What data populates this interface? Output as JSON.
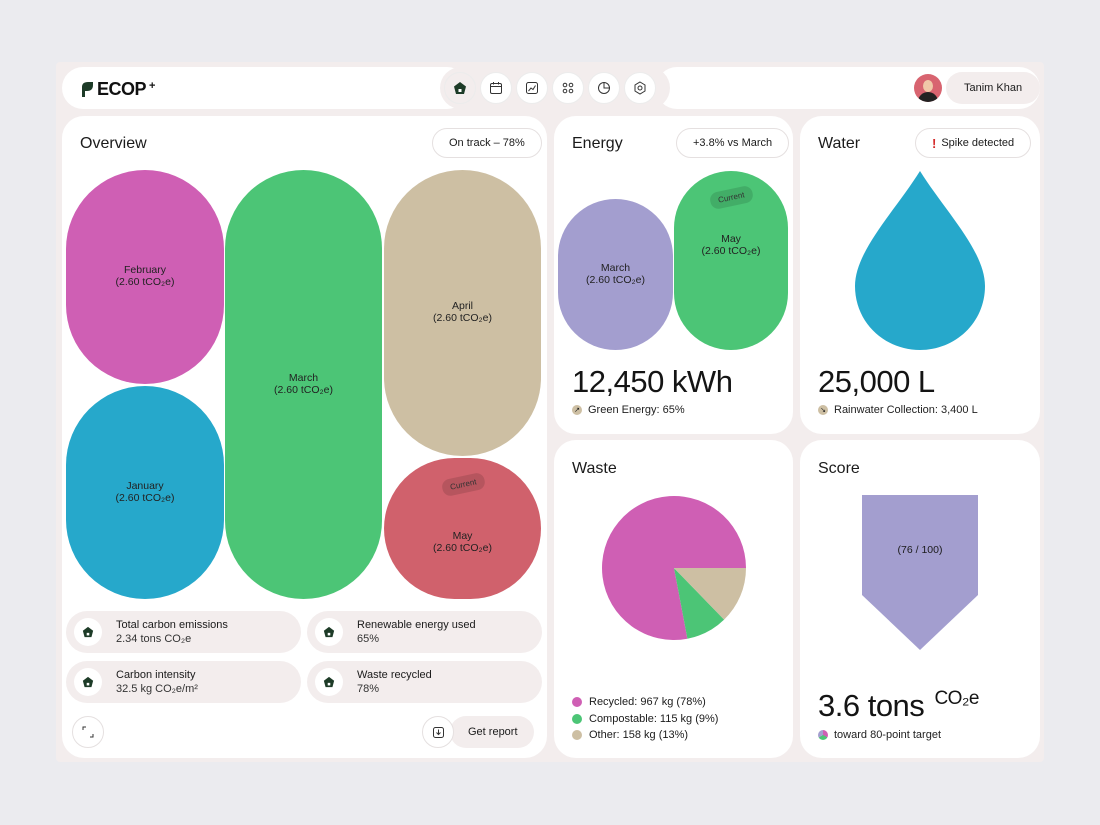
{
  "app": {
    "logo_text": "ECOP",
    "logo_sup": "+"
  },
  "nav": {
    "items": [
      "home-icon",
      "calendar-icon",
      "trend-icon",
      "grid-icon",
      "pie-icon",
      "settings-icon"
    ]
  },
  "user": {
    "name": "Tanim Khan"
  },
  "overview": {
    "title": "Overview",
    "badge": "On track – 78%",
    "months": [
      {
        "name": "February",
        "value": "(2.60 tCO₂e)",
        "color": "#cf5fb4"
      },
      {
        "name": "January",
        "value": "(2.60 tCO₂e)",
        "color": "#26a8cb"
      },
      {
        "name": "March",
        "value": "(2.60 tCO₂e)",
        "color": "#4cc576"
      },
      {
        "name": "April",
        "value": "(2.60 tCO₂e)",
        "color": "#cdbfa3"
      },
      {
        "name": "May",
        "value": "(2.60 tCO₂e)",
        "color": "#d0616c",
        "tag": "Current"
      }
    ],
    "stats": [
      {
        "label": "Total carbon emissions",
        "value": "2.34 tons CO₂e"
      },
      {
        "label": "Renewable energy used",
        "value": "65%"
      },
      {
        "label": "Carbon intensity",
        "value": "32.5 kg CO₂e/m²"
      },
      {
        "label": "Waste recycled",
        "value": "78%"
      }
    ],
    "report_label": "Get report"
  },
  "energy": {
    "title": "Energy",
    "badge": "+3.8% vs March",
    "months": [
      {
        "name": "March",
        "value": "(2.60 tCO₂e)",
        "color": "#a39ecf"
      },
      {
        "name": "May",
        "value": "(2.60 tCO₂e)",
        "color": "#4cc576",
        "tag": "Current"
      }
    ],
    "total": "12,450 kWh",
    "note": "Green Energy: 65%"
  },
  "water": {
    "title": "Water",
    "badge": "Spike detected",
    "badge_mark": "!",
    "total": "25,000 L",
    "note": "Rainwater Collection: 3,400 L",
    "color": "#26a8cb"
  },
  "waste": {
    "title": "Waste",
    "chart_data": {
      "type": "pie",
      "slices": [
        {
          "label": "Recycled",
          "value": 967,
          "unit": "kg",
          "percent": 78,
          "color": "#cf5fb4"
        },
        {
          "label": "Compostable",
          "value": 115,
          "unit": "kg",
          "percent": 9,
          "color": "#4cc576"
        },
        {
          "label": "Other",
          "value": 158,
          "unit": "kg",
          "percent": 13,
          "color": "#cdbfa3"
        }
      ]
    },
    "legend": [
      "Recycled: 967 kg (78%)",
      "Compostable: 115 kg (9%)",
      "Other: 158 kg (13%)"
    ]
  },
  "score": {
    "title": "Score",
    "value_text": "(76 / 100)",
    "total": "3.6 tons",
    "unit": "CO₂e",
    "note": "toward 80-point target",
    "color": "#a39ecf"
  }
}
